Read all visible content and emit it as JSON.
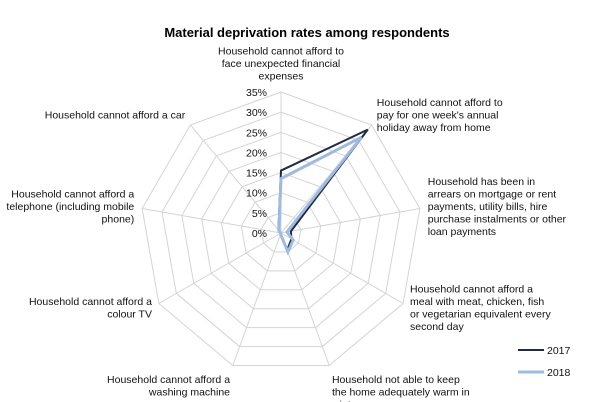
{
  "chart_data": {
    "type": "radar",
    "title": "Material deprivation rates among respondents",
    "axis_ticks": [
      "0%",
      "5%",
      "10%",
      "15%",
      "20%",
      "25%",
      "30%",
      "35%"
    ],
    "rlim": [
      0,
      35
    ],
    "grid": true,
    "legend_position": "bottom-right",
    "categories": [
      [
        "Household cannot afford to",
        "face unexpected financial",
        "expenses"
      ],
      [
        "Household cannot afford to",
        "pay for one week's annual",
        "holiday away from home"
      ],
      [
        "Household has been in",
        "arrears on mortgage or rent",
        "payments, utility bills, hire",
        "purchase instalments or other",
        "loan payments"
      ],
      [
        "Household cannot afford a",
        "meal with meat, chicken, fish",
        "or vegetarian equivalent every",
        "second day"
      ],
      [
        "Household not able to keep",
        "the home adequately warm in",
        "winter"
      ],
      [
        "Household cannot afford a",
        "washing machine"
      ],
      [
        "Household cannot afford a",
        "colour TV"
      ],
      [
        "Household cannot afford a",
        "telephone (including mobile",
        "phone)"
      ],
      [
        "Household cannot afford a car"
      ]
    ],
    "series": [
      {
        "name": "2017",
        "color": "#1f2a44",
        "values": [
          15.5,
          33.5,
          2.5,
          3.0,
          4.5,
          0.3,
          0.1,
          0.2,
          1.0
        ]
      },
      {
        "name": "2018",
        "color": "#9dbbe0",
        "values": [
          13.5,
          31.0,
          1.5,
          3.5,
          5.0,
          0.3,
          0.1,
          0.2,
          0.8
        ]
      }
    ]
  }
}
